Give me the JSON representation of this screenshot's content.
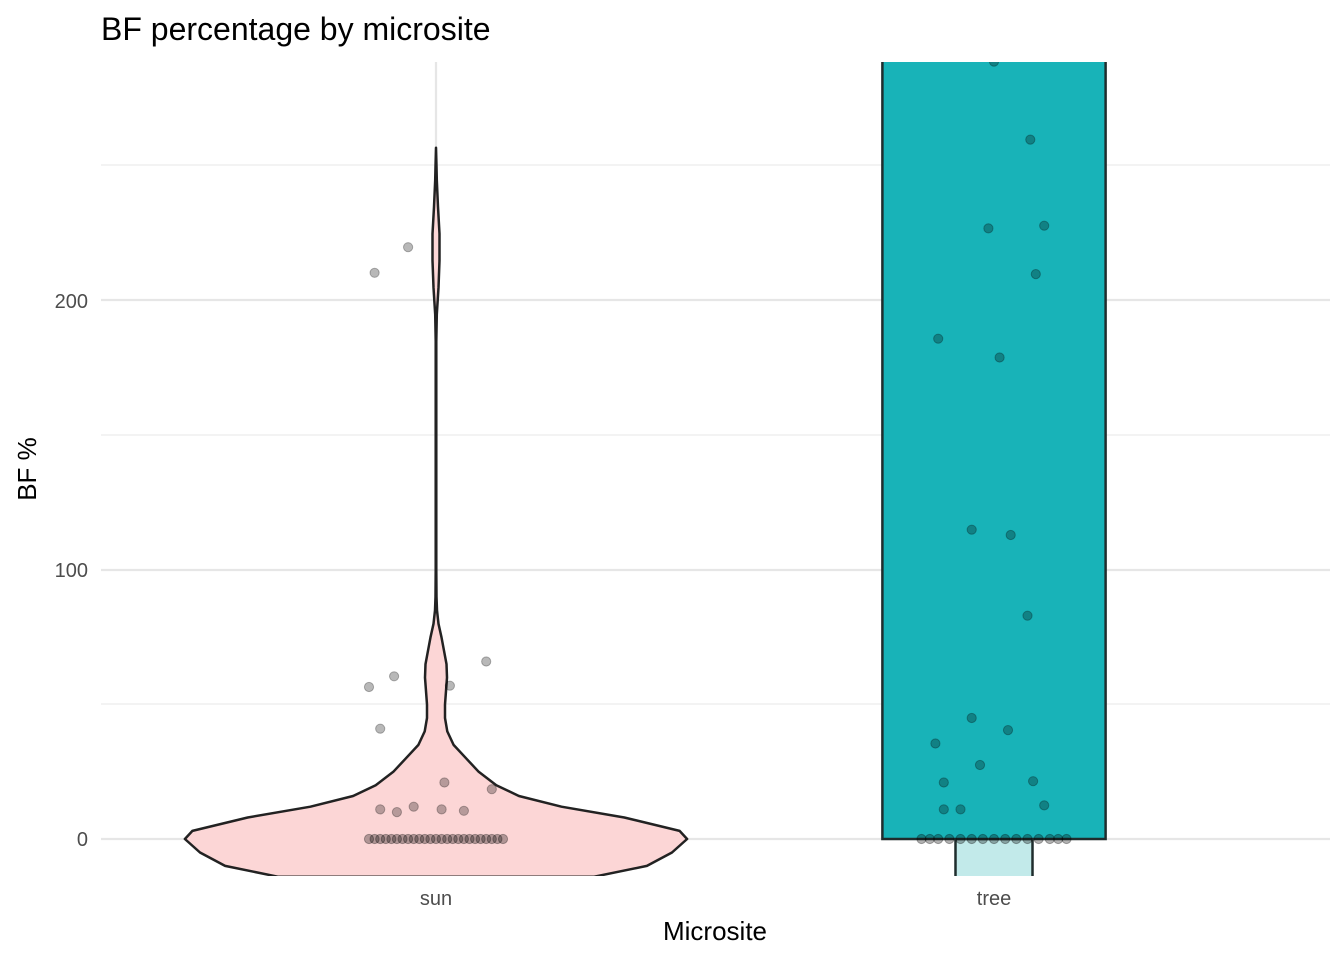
{
  "chart_data": {
    "type": "violin",
    "title": "BF percentage by microsite",
    "xlabel": "Microsite",
    "ylabel": "BF %",
    "categories": [
      "sun",
      "tree"
    ],
    "y_ticks": [
      0,
      100,
      200
    ],
    "y_range": [
      -14,
      289
    ],
    "fill_colors": {
      "sun": "#F8766D",
      "tree": "#00BFC4"
    },
    "violins": [
      {
        "category": "sun",
        "fill": "#fcd6d6",
        "outline": "#222222",
        "y_max": 257,
        "profile": [
          [
            -14,
            0.63
          ],
          [
            -10,
            0.84
          ],
          [
            -5,
            0.94
          ],
          [
            0,
            1.0
          ],
          [
            3,
            0.97
          ],
          [
            8,
            0.75
          ],
          [
            12,
            0.5
          ],
          [
            16,
            0.33
          ],
          [
            20,
            0.24
          ],
          [
            25,
            0.17
          ],
          [
            30,
            0.12
          ],
          [
            35,
            0.07
          ],
          [
            40,
            0.045
          ],
          [
            45,
            0.036
          ],
          [
            50,
            0.036
          ],
          [
            55,
            0.04
          ],
          [
            60,
            0.044
          ],
          [
            65,
            0.042
          ],
          [
            70,
            0.032
          ],
          [
            75,
            0.022
          ],
          [
            80,
            0.01
          ],
          [
            85,
            0.004
          ],
          [
            90,
            0.002
          ],
          [
            100,
            0.001
          ],
          [
            150,
            0.001
          ],
          [
            185,
            0.001
          ],
          [
            195,
            0.003
          ],
          [
            205,
            0.01
          ],
          [
            215,
            0.014
          ],
          [
            225,
            0.014
          ],
          [
            235,
            0.008
          ],
          [
            245,
            0.003
          ],
          [
            250,
            0.002
          ],
          [
            257,
            0.0
          ]
        ]
      },
      {
        "category": "tree",
        "fill": "#18b3b8",
        "outline": "#1f2d2d",
        "y_max": 289,
        "halfwidth_main": 0.2,
        "tail_fill": "#c2eaea",
        "tail_top": 0,
        "tail_halfwidth": 0.069
      }
    ],
    "points": {
      "sun": {
        "zero_cluster": [
          -0.12,
          -0.11,
          -0.1,
          -0.09,
          -0.08,
          -0.07,
          -0.06,
          -0.05,
          -0.04,
          -0.03,
          -0.02,
          -0.01,
          0.0,
          0.01,
          0.02,
          0.03,
          0.04,
          0.05,
          0.06,
          0.07,
          0.08,
          0.09,
          0.1,
          0.11,
          0.12
        ],
        "points": [
          [
            -0.11,
            210.5
          ],
          [
            -0.05,
            220
          ],
          [
            -0.12,
            56.5
          ],
          [
            -0.075,
            60.5
          ],
          [
            -0.1,
            41
          ],
          [
            0.025,
            57
          ],
          [
            0.09,
            66
          ],
          [
            -0.1,
            11
          ],
          [
            -0.07,
            10
          ],
          [
            -0.04,
            12
          ],
          [
            0.015,
            21
          ],
          [
            0.01,
            11
          ],
          [
            0.05,
            10.5
          ],
          [
            0.1,
            18.5
          ]
        ]
      },
      "tree": {
        "zero_cluster": [
          -0.13,
          -0.115,
          -0.1,
          -0.08,
          -0.06,
          -0.04,
          -0.02,
          0.0,
          0.02,
          0.04,
          0.06,
          0.08,
          0.1,
          0.115,
          0.13
        ],
        "points": [
          [
            0.0,
            289
          ],
          [
            0.065,
            260
          ],
          [
            -0.01,
            227
          ],
          [
            0.09,
            228
          ],
          [
            0.075,
            210
          ],
          [
            -0.1,
            186
          ],
          [
            0.01,
            179
          ],
          [
            -0.04,
            115
          ],
          [
            0.03,
            113
          ],
          [
            0.06,
            83
          ],
          [
            -0.04,
            45
          ],
          [
            0.025,
            40.5
          ],
          [
            -0.105,
            35.5
          ],
          [
            -0.09,
            21
          ],
          [
            -0.025,
            27.5
          ],
          [
            0.07,
            21.5
          ],
          [
            -0.06,
            11
          ],
          [
            -0.09,
            11
          ],
          [
            0.09,
            12.5
          ]
        ]
      }
    }
  }
}
